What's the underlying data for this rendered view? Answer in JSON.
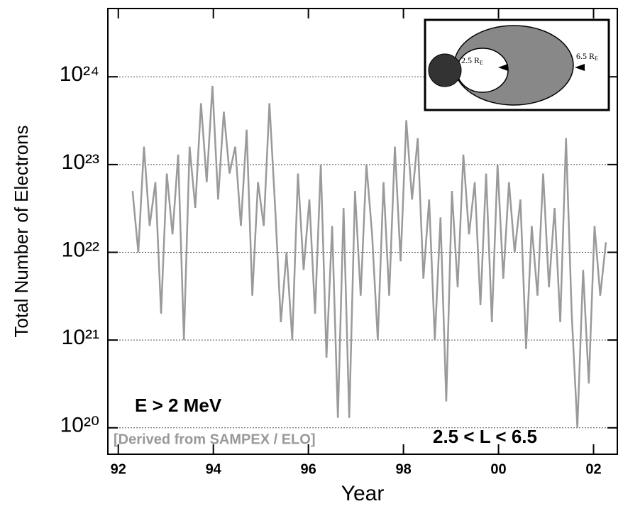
{
  "chart_data": {
    "type": "line",
    "ylabel": "Total Number of Electrons",
    "xlabel": "Year",
    "annotations": [
      "E > 2 MeV",
      "[Derived from SAMPEX / ELO]",
      "2.5 < L < 6.5"
    ],
    "inset_labels": [
      {
        "text": "2.5 R",
        "sub": "E"
      },
      {
        "text": "6.5 R",
        "sub": "E"
      }
    ],
    "log_y": true,
    "grid": true,
    "xlim": [
      1991.78,
      2002.5
    ],
    "ylim": [
      5e+19,
      6e+24
    ],
    "xticks": [
      {
        "value": 1992,
        "label": "92"
      },
      {
        "value": 1994,
        "label": "94"
      },
      {
        "value": 1996,
        "label": "96"
      },
      {
        "value": 1998,
        "label": "98"
      },
      {
        "value": 2000,
        "label": "00"
      },
      {
        "value": 2002,
        "label": "02"
      }
    ],
    "yticks": [
      {
        "value": 1e+20,
        "label": "10²⁰"
      },
      {
        "value": 1e+21,
        "label": "10²¹"
      },
      {
        "value": 1e+22,
        "label": "10²²"
      },
      {
        "value": 1e+23,
        "label": "10²³"
      },
      {
        "value": 1e+24,
        "label": "10²⁴"
      }
    ],
    "series": [
      {
        "color": "#9a9a9a",
        "x": [
          1992.3,
          1992.42,
          1992.54,
          1992.66,
          1992.78,
          1992.9,
          1993.02,
          1993.14,
          1993.26,
          1993.38,
          1993.5,
          1993.62,
          1993.74,
          1993.86,
          1993.98,
          1994.1,
          1994.22,
          1994.34,
          1994.46,
          1994.58,
          1994.7,
          1994.82,
          1994.94,
          1995.06,
          1995.18,
          1995.3,
          1995.42,
          1995.54,
          1995.66,
          1995.78,
          1995.9,
          1996.02,
          1996.14,
          1996.26,
          1996.38,
          1996.5,
          1996.62,
          1996.74,
          1996.86,
          1996.98,
          1997.1,
          1997.22,
          1997.34,
          1997.46,
          1997.58,
          1997.7,
          1997.82,
          1997.94,
          1998.06,
          1998.18,
          1998.3,
          1998.42,
          1998.54,
          1998.66,
          1998.78,
          1998.9,
          1999.02,
          1999.14,
          1999.26,
          1999.38,
          1999.5,
          1999.62,
          1999.74,
          1999.86,
          1999.98,
          2000.1,
          2000.22,
          2000.34,
          2000.46,
          2000.58,
          2000.7,
          2000.82,
          2000.94,
          2001.06,
          2001.18,
          2001.3,
          2001.42,
          2001.54,
          2001.66,
          2001.78,
          2001.9,
          2002.02,
          2002.14,
          2002.26
        ],
        "values": [
          5e+22,
          1e+22,
          1.6e+23,
          2e+22,
          6.3e+22,
          2e+21,
          7.9e+22,
          1.6e+22,
          1.3e+23,
          1e+21,
          1.6e+23,
          3.2e+22,
          5e+23,
          6.3e+22,
          7.9e+23,
          4e+22,
          4e+23,
          7.9e+22,
          1.6e+23,
          2e+22,
          2.5e+23,
          3.2e+21,
          6.3e+22,
          2e+22,
          5e+23,
          3.2e+22,
          1.6e+21,
          1e+22,
          1e+21,
          7.9e+22,
          6.3e+21,
          4e+22,
          2e+21,
          1e+23,
          6.3e+20,
          2e+22,
          1.3e+20,
          3.2e+22,
          1.3e+20,
          5e+22,
          3.2e+21,
          1e+23,
          1.6e+22,
          1e+21,
          6.3e+22,
          3.2e+21,
          1.6e+23,
          7.9e+21,
          3.2e+23,
          4e+22,
          2e+23,
          5e+21,
          4e+22,
          1e+21,
          2.5e+22,
          2e+20,
          5e+22,
          4e+21,
          1.3e+23,
          1.6e+22,
          6.3e+22,
          2.5e+21,
          7.9e+22,
          1.6e+21,
          1e+23,
          5e+21,
          6.3e+22,
          1e+22,
          4e+22,
          7.9e+20,
          2e+22,
          3.2e+21,
          7.9e+22,
          4e+21,
          3.2e+22,
          1.6e+21,
          2e+23,
          2e+21,
          1e+20,
          6.3e+21,
          3.2e+20,
          2e+22,
          3.2e+21,
          1.3e+22
        ]
      }
    ]
  }
}
